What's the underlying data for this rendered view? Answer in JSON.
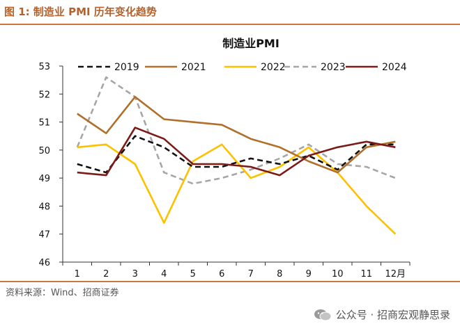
{
  "figure": {
    "title": "图 1:  制造业 PMI 历年变化趋势",
    "source": "资料来源：Wind、招商证券",
    "watermark": "公众号 · 招商宏观静思录"
  },
  "colors": {
    "accent": "#c8773e",
    "s2019": "#111111",
    "s2021": "#b0702a",
    "s2022": "#ffc000",
    "s2023": "#a6a6a6",
    "s2024": "#7b1a16"
  },
  "chart_data": {
    "type": "line",
    "title": "制造业PMI",
    "xlabel": "",
    "ylabel": "",
    "categories": [
      "1",
      "2",
      "3",
      "4",
      "5",
      "6",
      "7",
      "8",
      "9",
      "10",
      "11",
      "12月"
    ],
    "yticks": [
      "46",
      "47",
      "48",
      "49",
      "50",
      "51",
      "52",
      "53"
    ],
    "ylim": [
      46,
      53
    ],
    "legend_position": "top",
    "grid": false,
    "series": [
      {
        "name": "2019",
        "style": "dashed",
        "color": "#111111",
        "values": [
          49.5,
          49.2,
          50.5,
          50.1,
          49.4,
          49.4,
          49.7,
          49.5,
          49.8,
          49.3,
          50.2,
          50.2
        ]
      },
      {
        "name": "2021",
        "style": "solid",
        "color": "#b0702a",
        "values": [
          51.3,
          50.6,
          51.9,
          51.1,
          51.0,
          50.9,
          50.4,
          50.1,
          49.6,
          49.2,
          50.1,
          50.3
        ]
      },
      {
        "name": "2022",
        "style": "solid",
        "color": "#ffc000",
        "values": [
          50.1,
          50.2,
          49.5,
          47.4,
          49.6,
          50.2,
          49.0,
          49.4,
          50.1,
          49.2,
          48.0,
          47.0
        ]
      },
      {
        "name": "2023",
        "style": "dashed",
        "color": "#a6a6a6",
        "values": [
          50.1,
          52.6,
          51.9,
          49.2,
          48.8,
          49.0,
          49.3,
          49.7,
          50.2,
          49.5,
          49.4,
          49.0
        ]
      },
      {
        "name": "2024",
        "style": "solid",
        "color": "#7b1a16",
        "values": [
          49.2,
          49.1,
          50.8,
          50.4,
          49.5,
          49.5,
          49.4,
          49.1,
          49.8,
          50.1,
          50.3,
          50.1
        ]
      }
    ]
  }
}
